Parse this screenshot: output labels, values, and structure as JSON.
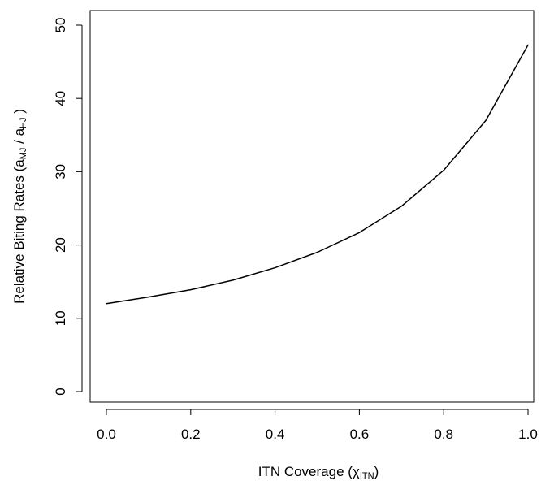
{
  "chart_data": {
    "type": "line",
    "title": "",
    "xlabel": {
      "main": "ITN Coverage (χ",
      "sub": "ITN",
      "end": ")"
    },
    "ylabel": {
      "part1": "Relative Biting Rates   (a",
      "sub1": "MJ",
      "part2": " / a",
      "sub2": "HJ",
      "part3": " )"
    },
    "xlim": [
      0,
      1
    ],
    "ylim": [
      0,
      50
    ],
    "x_ticks": [
      0,
      0.2,
      0.4,
      0.6,
      0.8,
      1
    ],
    "x_tick_labels": [
      "0.0",
      "0.2",
      "0.4",
      "0.6",
      "0.8",
      "1.0"
    ],
    "y_ticks": [
      0,
      10,
      20,
      30,
      40,
      50
    ],
    "y_tick_labels": [
      "0",
      "10",
      "20",
      "30",
      "40",
      "50"
    ],
    "grid": false,
    "legend": false,
    "series": [
      {
        "x": [
          0.0,
          0.1,
          0.2,
          0.3,
          0.4,
          0.5,
          0.6,
          0.7,
          0.8,
          0.9,
          1.0
        ],
        "values": [
          12.0,
          12.9,
          13.9,
          15.2,
          16.9,
          19.0,
          21.7,
          25.3,
          30.2,
          37.0,
          47.3
        ]
      }
    ],
    "line_color": "#000000"
  }
}
